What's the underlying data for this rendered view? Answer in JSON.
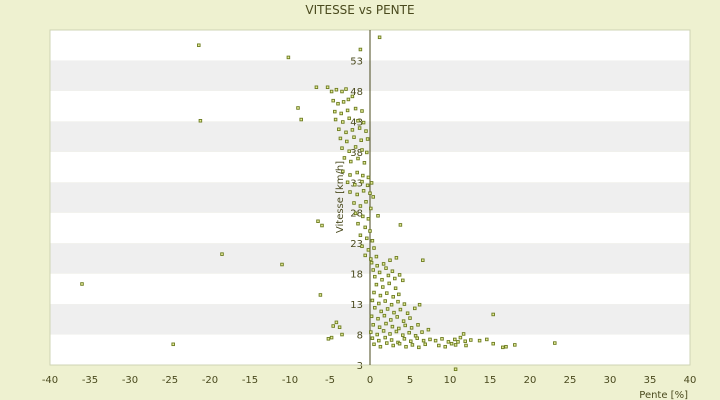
{
  "chart_data": {
    "type": "scatter",
    "title": "VITESSE vs PENTE",
    "xlabel": "Pente [%]",
    "ylabel": "Vitesse [km/h]",
    "xlim": [
      -40,
      40
    ],
    "ylim": [
      3,
      58
    ],
    "x_ticks": [
      "-40",
      "-35",
      "-30",
      "-25",
      "-20",
      "-15",
      "-10",
      "-5",
      "0",
      "5",
      "10",
      "15",
      "20",
      "25",
      "30",
      "35",
      "40"
    ],
    "y_ticks": [
      "3",
      "8",
      "13",
      "18",
      "23",
      "28",
      "33",
      "38",
      "43",
      "48",
      "53"
    ],
    "grid": "horizontal banded",
    "legend": "none",
    "colors": {
      "plot_band_light": "#ffffff",
      "plot_band_dark": "#efefef",
      "page_background": "#eef1d0",
      "point_stroke": "#6b7a1f",
      "point_fill": "#e6ee9a",
      "axis": "#4a4a1e"
    },
    "series": [
      {
        "points": [
          [
            -21.4,
            55.5
          ],
          [
            -10.2,
            53.5
          ],
          [
            -1.2,
            54.8
          ],
          [
            1.2,
            56.8
          ],
          [
            -36.0,
            16.3
          ],
          [
            -24.6,
            6.4
          ],
          [
            -21.2,
            43.1
          ],
          [
            -18.5,
            21.2
          ],
          [
            -11.0,
            19.5
          ],
          [
            -9.0,
            45.2
          ],
          [
            -8.6,
            43.3
          ],
          [
            -6.5,
            26.6
          ],
          [
            -6.0,
            25.9
          ],
          [
            -6.2,
            14.5
          ],
          [
            -5.2,
            7.3
          ],
          [
            -4.8,
            7.5
          ],
          [
            -4.6,
            9.4
          ],
          [
            -4.2,
            10.0
          ],
          [
            -3.8,
            9.2
          ],
          [
            -3.5,
            8.0
          ],
          [
            -6.7,
            48.6
          ],
          [
            -5.3,
            48.6
          ],
          [
            -4.8,
            47.9
          ],
          [
            -4.2,
            48.2
          ],
          [
            -3.5,
            47.9
          ],
          [
            -3.0,
            48.3
          ],
          [
            -4.6,
            46.4
          ],
          [
            -4.0,
            45.9
          ],
          [
            -3.3,
            46.2
          ],
          [
            -2.7,
            46.6
          ],
          [
            -2.2,
            47.1
          ],
          [
            -4.4,
            44.6
          ],
          [
            -3.6,
            44.3
          ],
          [
            -2.8,
            44.8
          ],
          [
            -1.8,
            45.1
          ],
          [
            -1.0,
            44.7
          ],
          [
            -4.3,
            43.3
          ],
          [
            -3.4,
            42.9
          ],
          [
            -2.6,
            43.5
          ],
          [
            -1.5,
            43.1
          ],
          [
            -0.8,
            42.8
          ],
          [
            -3.9,
            41.7
          ],
          [
            -3.0,
            41.2
          ],
          [
            -2.2,
            41.6
          ],
          [
            -1.3,
            41.9
          ],
          [
            -0.5,
            41.4
          ],
          [
            -3.7,
            40.2
          ],
          [
            -2.9,
            39.7
          ],
          [
            -2.0,
            40.4
          ],
          [
            -1.1,
            39.9
          ],
          [
            -0.3,
            40.1
          ],
          [
            -3.5,
            38.6
          ],
          [
            -2.6,
            38.1
          ],
          [
            -1.8,
            38.8
          ],
          [
            -1.0,
            38.3
          ],
          [
            -0.4,
            37.9
          ],
          [
            -3.2,
            37.0
          ],
          [
            -2.4,
            36.4
          ],
          [
            -1.5,
            36.9
          ],
          [
            -0.7,
            36.2
          ],
          [
            -3.4,
            34.8
          ],
          [
            -2.5,
            34.2
          ],
          [
            -1.6,
            34.6
          ],
          [
            -0.9,
            34.1
          ],
          [
            -0.2,
            33.8
          ],
          [
            -2.8,
            33.0
          ],
          [
            -1.9,
            32.6
          ],
          [
            -1.0,
            33.1
          ],
          [
            -0.3,
            32.5
          ],
          [
            0.2,
            32.9
          ],
          [
            -2.5,
            31.4
          ],
          [
            -1.6,
            31.0
          ],
          [
            -0.8,
            31.6
          ],
          [
            0.0,
            31.2
          ],
          [
            0.4,
            30.6
          ],
          [
            -2.0,
            29.6
          ],
          [
            -1.2,
            29.1
          ],
          [
            -0.5,
            29.8
          ],
          [
            0.1,
            28.7
          ],
          [
            -1.8,
            27.9
          ],
          [
            -0.9,
            27.4
          ],
          [
            -0.2,
            27.0
          ],
          [
            1.0,
            27.5
          ],
          [
            -1.5,
            26.2
          ],
          [
            -0.6,
            25.6
          ],
          [
            0.0,
            25.0
          ],
          [
            -1.2,
            24.3
          ],
          [
            -0.4,
            23.8
          ],
          [
            0.3,
            23.4
          ],
          [
            -1.0,
            22.5
          ],
          [
            -0.2,
            21.9
          ],
          [
            0.5,
            22.2
          ],
          [
            3.8,
            26.0
          ],
          [
            -0.6,
            21.0
          ],
          [
            0.1,
            20.4
          ],
          [
            0.8,
            20.8
          ],
          [
            6.6,
            20.2
          ],
          [
            0.2,
            19.8
          ],
          [
            0.9,
            19.3
          ],
          [
            1.7,
            19.6
          ],
          [
            2.5,
            20.2
          ],
          [
            3.3,
            20.6
          ],
          [
            0.4,
            18.6
          ],
          [
            1.2,
            18.2
          ],
          [
            2.0,
            18.9
          ],
          [
            2.8,
            18.4
          ],
          [
            3.7,
            17.8
          ],
          [
            0.6,
            17.5
          ],
          [
            1.5,
            17.0
          ],
          [
            2.3,
            17.7
          ],
          [
            3.1,
            17.2
          ],
          [
            4.1,
            16.9
          ],
          [
            0.8,
            16.2
          ],
          [
            1.6,
            15.8
          ],
          [
            2.4,
            16.4
          ],
          [
            3.2,
            15.6
          ],
          [
            0.5,
            14.9
          ],
          [
            1.3,
            14.4
          ],
          [
            2.1,
            14.8
          ],
          [
            2.9,
            14.2
          ],
          [
            3.6,
            14.6
          ],
          [
            0.3,
            13.6
          ],
          [
            1.1,
            13.1
          ],
          [
            1.9,
            13.5
          ],
          [
            2.7,
            12.9
          ],
          [
            3.5,
            13.4
          ],
          [
            4.3,
            13.0
          ],
          [
            0.6,
            12.4
          ],
          [
            1.4,
            11.8
          ],
          [
            2.2,
            12.2
          ],
          [
            3.0,
            11.6
          ],
          [
            3.8,
            12.1
          ],
          [
            4.7,
            11.5
          ],
          [
            5.6,
            12.3
          ],
          [
            6.2,
            12.9
          ],
          [
            0.2,
            11.0
          ],
          [
            1.0,
            10.6
          ],
          [
            1.8,
            11.1
          ],
          [
            2.6,
            10.4
          ],
          [
            3.4,
            10.9
          ],
          [
            4.2,
            10.2
          ],
          [
            5.0,
            10.7
          ],
          [
            0.4,
            9.6
          ],
          [
            1.2,
            9.2
          ],
          [
            2.0,
            9.8
          ],
          [
            2.8,
            9.3
          ],
          [
            3.6,
            9.0
          ],
          [
            4.4,
            9.5
          ],
          [
            5.2,
            9.1
          ],
          [
            6.0,
            9.6
          ],
          [
            0.1,
            8.4
          ],
          [
            0.9,
            8.0
          ],
          [
            1.7,
            8.6
          ],
          [
            2.5,
            8.1
          ],
          [
            3.3,
            8.5
          ],
          [
            4.1,
            7.9
          ],
          [
            4.9,
            8.3
          ],
          [
            5.7,
            7.8
          ],
          [
            6.5,
            8.4
          ],
          [
            7.3,
            8.8
          ],
          [
            0.3,
            7.4
          ],
          [
            1.1,
            7.0
          ],
          [
            1.9,
            7.5
          ],
          [
            2.7,
            7.1
          ],
          [
            3.5,
            6.7
          ],
          [
            4.3,
            7.3
          ],
          [
            5.1,
            6.9
          ],
          [
            5.9,
            7.4
          ],
          [
            6.7,
            7.0
          ],
          [
            7.5,
            7.2
          ],
          [
            0.5,
            6.4
          ],
          [
            1.3,
            6.0
          ],
          [
            2.1,
            6.6
          ],
          [
            2.9,
            6.2
          ],
          [
            3.7,
            6.5
          ],
          [
            4.5,
            6.0
          ],
          [
            5.3,
            6.3
          ],
          [
            6.1,
            5.9
          ],
          [
            6.9,
            6.4
          ],
          [
            8.2,
            7.0
          ],
          [
            9.0,
            7.3
          ],
          [
            9.8,
            6.8
          ],
          [
            10.6,
            7.2
          ],
          [
            11.3,
            7.5
          ],
          [
            11.9,
            6.9
          ],
          [
            12.6,
            7.1
          ],
          [
            13.7,
            7.0
          ],
          [
            14.6,
            7.2
          ],
          [
            15.4,
            6.5
          ],
          [
            16.6,
            5.9
          ],
          [
            17.0,
            6.0
          ],
          [
            18.1,
            6.3
          ],
          [
            11.7,
            8.1
          ],
          [
            8.6,
            6.2
          ],
          [
            9.4,
            6.0
          ],
          [
            10.2,
            6.5
          ],
          [
            11.0,
            6.8
          ],
          [
            12.0,
            6.2
          ],
          [
            15.4,
            11.3
          ],
          [
            23.1,
            6.6
          ],
          [
            10.7,
            6.3
          ],
          [
            10.7,
            2.3
          ]
        ]
      }
    ]
  }
}
